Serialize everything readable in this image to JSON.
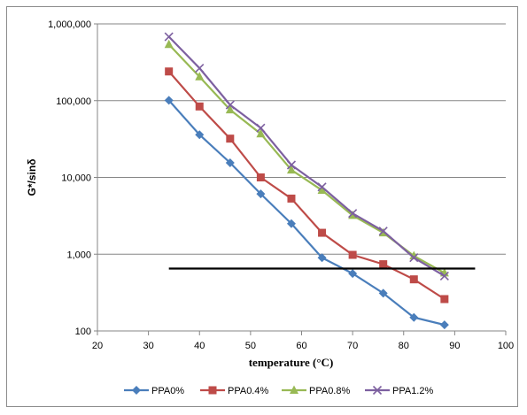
{
  "chart_data": {
    "type": "line",
    "title": "",
    "xlabel": "temperature (°C)",
    "ylabel": "G*/sinδ",
    "xlim": [
      20,
      100
    ],
    "ylim": [
      100,
      1000000
    ],
    "yscale": "log",
    "xticks": [
      "20",
      "30",
      "40",
      "50",
      "60",
      "70",
      "80",
      "90",
      "100"
    ],
    "yticks": [
      "100",
      "1,000",
      "10,000",
      "100,000",
      "1,000,000"
    ],
    "grid": "horizontal",
    "legend": "bottom",
    "x": [
      34,
      40,
      46,
      52,
      58,
      64,
      70,
      76,
      82,
      88
    ],
    "series": [
      {
        "name": "PPA0%",
        "color": "#4a7ebb",
        "marker": "diamond",
        "values": [
          101000,
          36000,
          15500,
          6100,
          2500,
          900,
          560,
          310,
          150,
          120
        ]
      },
      {
        "name": "PPA0.4%",
        "color": "#be4b48",
        "marker": "square",
        "values": [
          240000,
          84000,
          32000,
          10000,
          5300,
          1900,
          980,
          740,
          470,
          260
        ]
      },
      {
        "name": "PPA0.8%",
        "color": "#98b954",
        "marker": "triangle",
        "values": [
          540000,
          205000,
          76000,
          37000,
          12500,
          6800,
          3200,
          1900,
          950,
          570
        ]
      },
      {
        "name": "PPA1.2%",
        "color": "#7d60a0",
        "marker": "x",
        "values": [
          680000,
          265000,
          88000,
          44000,
          14500,
          7500,
          3400,
          2000,
          900,
          520
        ]
      }
    ],
    "reference_line": {
      "value": 650,
      "x_range": [
        34,
        94
      ],
      "color": "#000000"
    }
  }
}
